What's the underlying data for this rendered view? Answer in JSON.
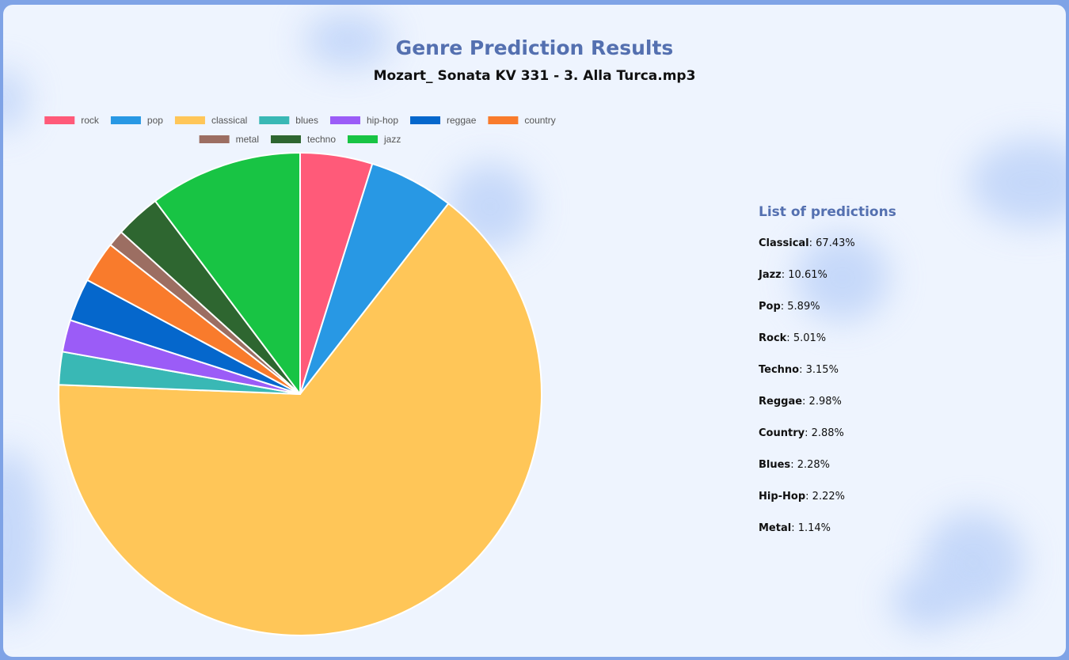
{
  "header": {
    "title": "Genre Prediction Results",
    "file_name": "Mozart_ Sonata KV 331 - 3. Alla Turca.mp3"
  },
  "chart_data": {
    "type": "pie",
    "legend_position": "top",
    "categories": [
      "rock",
      "pop",
      "classical",
      "blues",
      "hip-hop",
      "reggae",
      "country",
      "metal",
      "techno",
      "jazz"
    ],
    "values": [
      5.01,
      5.89,
      67.43,
      2.28,
      2.22,
      2.98,
      2.88,
      1.14,
      3.15,
      10.61
    ],
    "colors": [
      "#ff5a79",
      "#2898e4",
      "#ffc658",
      "#39b8b5",
      "#9b5cf7",
      "#0567cc",
      "#f97b2c",
      "#9c6e62",
      "#2e6630",
      "#18c444"
    ]
  },
  "predictions": {
    "heading": "List of predictions",
    "items": [
      {
        "label": "Classical",
        "value": "67.43%"
      },
      {
        "label": "Jazz",
        "value": "10.61%"
      },
      {
        "label": "Pop",
        "value": "5.89%"
      },
      {
        "label": "Rock",
        "value": "5.01%"
      },
      {
        "label": "Techno",
        "value": "3.15%"
      },
      {
        "label": "Reggae",
        "value": "2.98%"
      },
      {
        "label": "Country",
        "value": "2.88%"
      },
      {
        "label": "Blues",
        "value": "2.28%"
      },
      {
        "label": "Hip-Hop",
        "value": "2.22%"
      },
      {
        "label": "Metal",
        "value": "1.14%"
      }
    ]
  }
}
